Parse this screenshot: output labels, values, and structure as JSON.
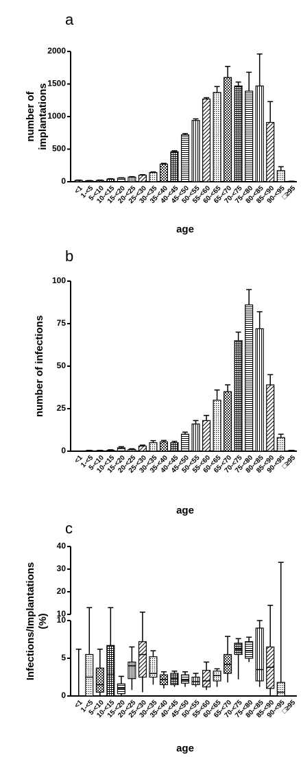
{
  "chart_data": [
    {
      "type": "bar",
      "panel_label": "a",
      "ylabel": [
        "number of",
        "implantations"
      ],
      "xlabel": "age",
      "categories": [
        "<1",
        "1-<5",
        "5-<10",
        "10-<15",
        "15-<20",
        "20-<25",
        "25-<30",
        "30-<35",
        "35-<40",
        "40-<45",
        "45-<50",
        "50-<55",
        "55-<60",
        "60-<65",
        "65-<70",
        "70-<75",
        "75-<80",
        "80-<85",
        "85-<90",
        "90-<95",
        "□≥95"
      ],
      "values": [
        20,
        15,
        20,
        40,
        55,
        70,
        100,
        140,
        270,
        460,
        720,
        940,
        1270,
        1370,
        1600,
        1470,
        1390,
        1470,
        910,
        170,
        5
      ],
      "errors": [
        5,
        4,
        5,
        6,
        6,
        7,
        8,
        10,
        12,
        15,
        20,
        25,
        20,
        90,
        170,
        60,
        290,
        490,
        320,
        60,
        3
      ],
      "ylim": [
        0,
        2000
      ],
      "yticks": [
        0,
        500,
        1000,
        1500,
        2000
      ]
    },
    {
      "type": "bar",
      "panel_label": "b",
      "ylabel": [
        "number of infections"
      ],
      "xlabel": "age",
      "categories": [
        "<1",
        "1-<5",
        "5-<10",
        "10-<15",
        "15-<20",
        "20-<25",
        "25-<30",
        "30-<35",
        "35-<40",
        "40-<45",
        "45-<50",
        "50-<55",
        "55-<60",
        "60-<65",
        "65-<70",
        "70-<75",
        "75-<80",
        "80-<85",
        "85-<90",
        "90-<95",
        "□≥95"
      ],
      "values": [
        0,
        0.3,
        0.3,
        0.5,
        2,
        1,
        3,
        5,
        5.5,
        5,
        10,
        16,
        18,
        30,
        35,
        65,
        86,
        72,
        39,
        8,
        0.3
      ],
      "errors": [
        0,
        0.2,
        0.2,
        0.3,
        0.6,
        0.4,
        0.6,
        1.2,
        0.8,
        0.8,
        1.2,
        2,
        3,
        6,
        4,
        5,
        9,
        10,
        6,
        2,
        0.2
      ],
      "ylim": [
        0,
        100
      ],
      "yticks": [
        0,
        25,
        50,
        75,
        100
      ]
    },
    {
      "type": "box",
      "panel_label": "c",
      "ylabel": [
        "Infections/Implantations",
        "(%)"
      ],
      "xlabel": "age",
      "categories": [
        "<1",
        "1-<5",
        "5-<10",
        "10-<15",
        "15-<20",
        "20-<25",
        "25-<30",
        "30-<35",
        "35-<40",
        "40-<45",
        "45-<50",
        "50-<55",
        "55-<60",
        "60-<65",
        "65-<70",
        "70-<75",
        "75-<80",
        "80-<85",
        "85-<90",
        "90-<95",
        "□≥95"
      ],
      "mins": [
        0,
        0,
        0,
        0,
        0,
        0.8,
        0.5,
        1.5,
        1,
        1.2,
        1.2,
        1.2,
        0.8,
        1.2,
        1.8,
        2.2,
        4.5,
        1.2,
        0,
        0,
        null
      ],
      "q1": [
        0,
        0,
        0.5,
        0,
        0.3,
        2.3,
        2.5,
        2.5,
        1.5,
        1.5,
        1.7,
        1.5,
        1.2,
        2,
        3,
        5.5,
        5,
        2,
        1,
        0,
        null
      ],
      "medians": [
        0,
        2.5,
        1.5,
        2.8,
        1,
        4,
        5.5,
        3,
        2.2,
        2.3,
        2.1,
        1.9,
        2,
        2.7,
        4.2,
        6.2,
        6,
        3.5,
        3.8,
        0.5,
        null
      ],
      "q3": [
        0,
        5.5,
        3.7,
        6.7,
        1.6,
        4.5,
        7.2,
        5.2,
        2.8,
        3,
        2.8,
        2.5,
        3.4,
        3.3,
        5.5,
        7,
        7.2,
        9,
        6.5,
        1.8,
        null
      ],
      "maxs": [
        6.2,
        13,
        6.2,
        13,
        2.6,
        6.5,
        11,
        6,
        3.2,
        3.3,
        3.2,
        3,
        4.5,
        3.6,
        7.9,
        7.6,
        7.8,
        10,
        14,
        33,
        null
      ],
      "ylim": [
        0,
        10
      ],
      "yticks": [
        0,
        5,
        10
      ],
      "ylim_upper": [
        10,
        40
      ],
      "yticks_upper": [
        10,
        20,
        30,
        40
      ]
    }
  ]
}
